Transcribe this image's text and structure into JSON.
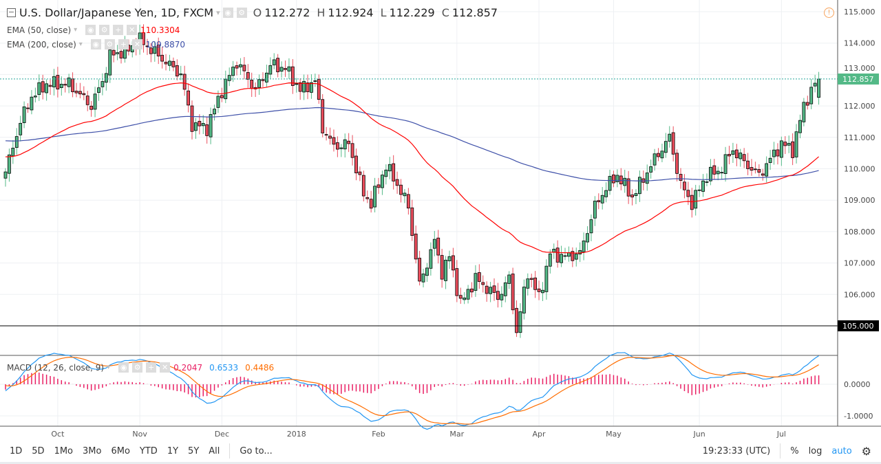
{
  "header": {
    "symbol": "U.S. Dollar/Japanese Yen, 1D, FXCM",
    "open_label": "O",
    "open": "112.272",
    "high_label": "H",
    "high": "112.924",
    "low_label": "L",
    "low": "112.229",
    "close_label": "C",
    "close": "112.857"
  },
  "indicators": {
    "ema50": {
      "label": "EMA (50, close)",
      "value": "110.3304"
    },
    "ema200": {
      "label": "EMA (200, close)",
      "value": "109.8870"
    },
    "macd": {
      "label": "MACD (12, 26, close, 9)",
      "hist": "0.2047",
      "macd": "0.6533",
      "signal": "0.4486"
    }
  },
  "price_axis": [
    "115.000",
    "114.000",
    "113.000",
    "112.000",
    "111.000",
    "110.000",
    "109.000",
    "108.000",
    "107.000",
    "106.000"
  ],
  "last_price": "112.857",
  "support_level": "105.000",
  "support_value": 105,
  "macd_axis": [
    "0.0000",
    "-1.0000"
  ],
  "time_axis": [
    {
      "label": "Oct",
      "bar": 14
    },
    {
      "label": "Nov",
      "bar": 36
    },
    {
      "label": "Dec",
      "bar": 58
    },
    {
      "label": "2018",
      "bar": 78
    },
    {
      "label": "Feb",
      "bar": 100
    },
    {
      "label": "Mar",
      "bar": 121
    },
    {
      "label": "Apr",
      "bar": 143
    },
    {
      "label": "May",
      "bar": 163
    },
    {
      "label": "Jun",
      "bar": 186
    },
    {
      "label": "Jul",
      "bar": 208
    }
  ],
  "toolbar": {
    "ranges": [
      "1D",
      "5D",
      "1Mo",
      "3Mo",
      "6Mo",
      "YTD",
      "1Y",
      "5Y",
      "All"
    ],
    "goto": "Go to...",
    "clock": "19:23:33 (UTC)",
    "percent": "%",
    "log": "log",
    "auto": "auto"
  },
  "colors": {
    "up": "#53b987",
    "down": "#eb4d5c",
    "ema50": "#ff0000",
    "ema200": "#3d4fa8",
    "macd": "#2196f3",
    "signal": "#ff6d00",
    "hist": "#e91e63",
    "accent": "#2196f3"
  },
  "chart_data": {
    "type": "candlestick",
    "bars": 219,
    "close_keypoints": [
      [
        0,
        109.9
      ],
      [
        4,
        111.5
      ],
      [
        7,
        112.3
      ],
      [
        11,
        112.7
      ],
      [
        17,
        112.7
      ],
      [
        23,
        112.0
      ],
      [
        26,
        112.8
      ],
      [
        28,
        113.6
      ],
      [
        33,
        113.8
      ],
      [
        36,
        114.1
      ],
      [
        41,
        113.6
      ],
      [
        47,
        113.0
      ],
      [
        50,
        111.4
      ],
      [
        54,
        111.3
      ],
      [
        58,
        112.5
      ],
      [
        62,
        113.4
      ],
      [
        67,
        112.5
      ],
      [
        71,
        113.3
      ],
      [
        75,
        113.2
      ],
      [
        79,
        112.5
      ],
      [
        83,
        112.8
      ],
      [
        85,
        111.3
      ],
      [
        88,
        110.7
      ],
      [
        92,
        110.8
      ],
      [
        96,
        109.2
      ],
      [
        98,
        108.9
      ],
      [
        102,
        110.1
      ],
      [
        105,
        109.5
      ],
      [
        108,
        108.8
      ],
      [
        111,
        106.3
      ],
      [
        115,
        107.7
      ],
      [
        117,
        106.7
      ],
      [
        119,
        107.2
      ],
      [
        122,
        105.7
      ],
      [
        126,
        106.5
      ],
      [
        132,
        105.9
      ],
      [
        135,
        106.5
      ],
      [
        137,
        104.8
      ],
      [
        140,
        106.7
      ],
      [
        143,
        105.9
      ],
      [
        146,
        107.3
      ],
      [
        150,
        107.2
      ],
      [
        154,
        107.3
      ],
      [
        158,
        108.8
      ],
      [
        161,
        109.4
      ],
      [
        164,
        109.8
      ],
      [
        168,
        109.1
      ],
      [
        174,
        110.3
      ],
      [
        178,
        111.0
      ],
      [
        181,
        109.5
      ],
      [
        184,
        108.9
      ],
      [
        188,
        109.8
      ],
      [
        191,
        109.9
      ],
      [
        195,
        110.6
      ],
      [
        199,
        110.1
      ],
      [
        202,
        109.8
      ],
      [
        208,
        110.8
      ],
      [
        211,
        110.6
      ],
      [
        214,
        112.0
      ],
      [
        216,
        112.5
      ],
      [
        218,
        112.857
      ]
    ],
    "ylim": [
      104.5,
      115.3
    ]
  }
}
